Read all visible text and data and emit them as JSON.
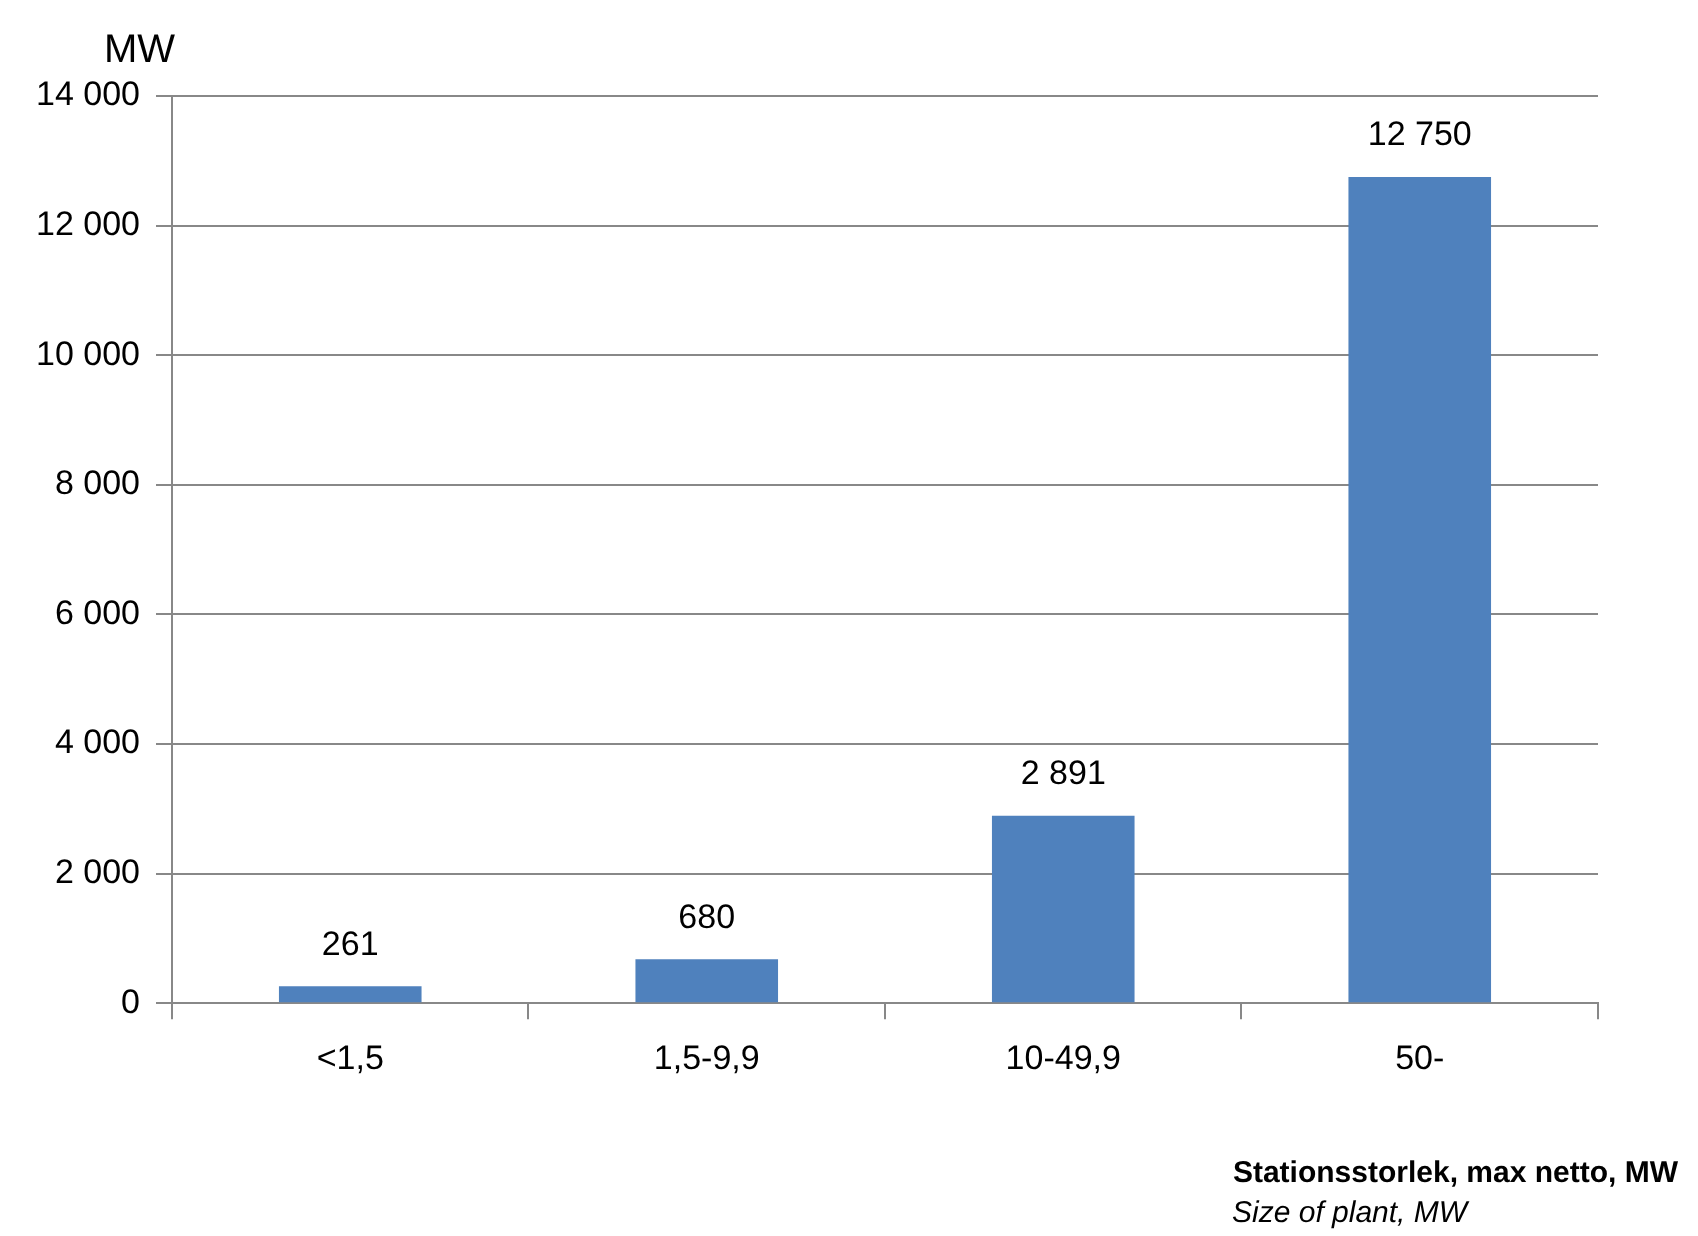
{
  "chart_data": {
    "type": "bar",
    "ylabel": "MW",
    "xlabel": "Stationsstorlek, max netto, MW",
    "annotations": [
      "Size of plant, MW"
    ],
    "categories": [
      "<1,5",
      "1,5-9,9",
      "10-49,9",
      "50-"
    ],
    "values": [
      261,
      680,
      2891,
      12750
    ],
    "color": "#4f81bd",
    "value_labels": [
      "261",
      "680",
      "2 891",
      "12 750"
    ],
    "ylim": [
      0,
      14000
    ],
    "yticks": [
      {
        "value": 0,
        "label": "0"
      },
      {
        "value": 2000,
        "label": "2 000"
      },
      {
        "value": 4000,
        "label": "4 000"
      },
      {
        "value": 6000,
        "label": "6 000"
      },
      {
        "value": 8000,
        "label": "8 000"
      },
      {
        "value": 10000,
        "label": "10 000"
      },
      {
        "value": 12000,
        "label": "12 000"
      },
      {
        "value": 14000,
        "label": "14 000"
      }
    ],
    "grid": "y",
    "legend": false
  }
}
